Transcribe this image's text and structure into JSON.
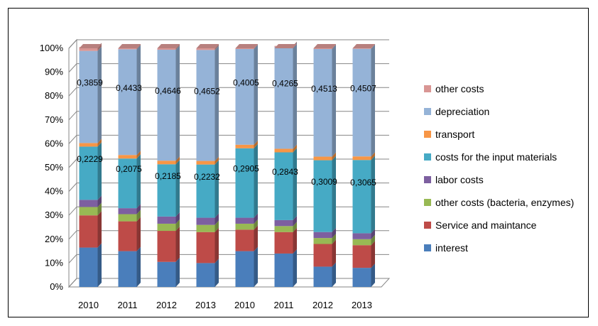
{
  "chart_data": {
    "type": "bar",
    "stacked": true,
    "percent_stacked": true,
    "three_d": true,
    "categories": [
      "2010",
      "2011",
      "2012",
      "2013",
      "2010",
      "2011",
      "2012",
      "2013"
    ],
    "yticks": [
      "0%",
      "10%",
      "20%",
      "30%",
      "40%",
      "50%",
      "60%",
      "70%",
      "80%",
      "90%",
      "100%"
    ],
    "ylim": [
      0,
      100
    ],
    "legend_position": "right",
    "grid": true,
    "series": [
      {
        "name": "interest",
        "color": "#4a7ebb",
        "values": [
          16.5,
          15,
          10.5,
          10,
          15,
          14,
          8.5,
          8
        ]
      },
      {
        "name": "Service and maintance",
        "color": "#be4b48",
        "values": [
          13.5,
          12.5,
          13,
          13,
          9,
          9,
          9.5,
          9.5
        ]
      },
      {
        "name": "other costs (bacteria, enzymes)",
        "color": "#98b954",
        "values": [
          3.5,
          3,
          3,
          3,
          2.5,
          2.5,
          2.5,
          2.5
        ]
      },
      {
        "name": "labor costs",
        "color": "#7d5fa0",
        "values": [
          3,
          2.5,
          3,
          3,
          2.5,
          2.5,
          2.5,
          2.5
        ]
      },
      {
        "name": "costs for the input materials",
        "color": "#46aac5",
        "values": [
          22.3,
          20.8,
          21.9,
          22.3,
          29.1,
          28.4,
          30.1,
          30.7
        ]
      },
      {
        "name": "transport",
        "color": "#f79646",
        "values": [
          1.5,
          1.5,
          1.5,
          1.5,
          1.5,
          1.5,
          1.5,
          1.5
        ]
      },
      {
        "name": "depreciation",
        "color": "#95b3d7",
        "values": [
          38.6,
          44.3,
          46.5,
          46.5,
          40.1,
          42.7,
          45.1,
          45.1
        ]
      },
      {
        "name": "other costs",
        "color": "#d99694",
        "values": [
          1.6,
          0.4,
          0.6,
          0.7,
          0.3,
          -0.6,
          0.3,
          0.2
        ]
      }
    ],
    "data_labels": {
      "costs for the input materials": [
        "0,2229",
        "0,2075",
        "0,2185",
        "0,2232",
        "0,2905",
        "0,2843",
        "0,3009",
        "0,3065"
      ],
      "depreciation": [
        "0,3859",
        "0,4433",
        "0,4646",
        "0,4652",
        "0,4005",
        "0,4265",
        "0,4513",
        "0,4507"
      ]
    },
    "legend_order": [
      "other costs",
      "depreciation",
      "transport",
      "costs for the input materials",
      "labor costs",
      "other costs (bacteria, enzymes)",
      "Service and maintance",
      "interest"
    ]
  }
}
